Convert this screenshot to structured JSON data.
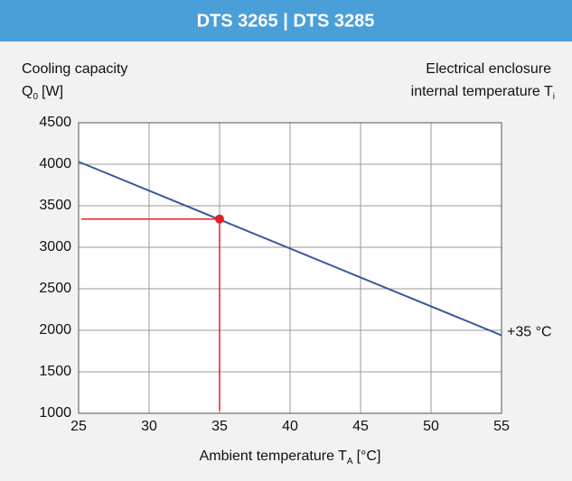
{
  "chart_data": {
    "type": "line",
    "title": "DTS 3265 | DTS 3285",
    "ylabel": {
      "text": "Cooling capacity",
      "symbol": "Q",
      "sub": "0",
      "unit": "[W]"
    },
    "y2label": {
      "text": "Electrical enclosure",
      "symbol": "internal temperature T",
      "sub": "i"
    },
    "xlabel": {
      "text": "Ambient temperature T",
      "sub": "A",
      "unit": "[°C]"
    },
    "xlim": [
      25,
      55
    ],
    "xticks": [
      25,
      30,
      35,
      40,
      45,
      50,
      55
    ],
    "ylim": [
      1000,
      4500
    ],
    "yticks": [
      1000,
      1500,
      2000,
      2500,
      3000,
      3500,
      4000,
      4500
    ],
    "grid": true,
    "series": [
      {
        "name": "+35 °C",
        "color": "#3a5a9c",
        "x": [
          25,
          55
        ],
        "values": [
          4030,
          1940
        ]
      }
    ],
    "marker": {
      "x": 35,
      "y": 3340,
      "color": "#e0202a"
    }
  }
}
